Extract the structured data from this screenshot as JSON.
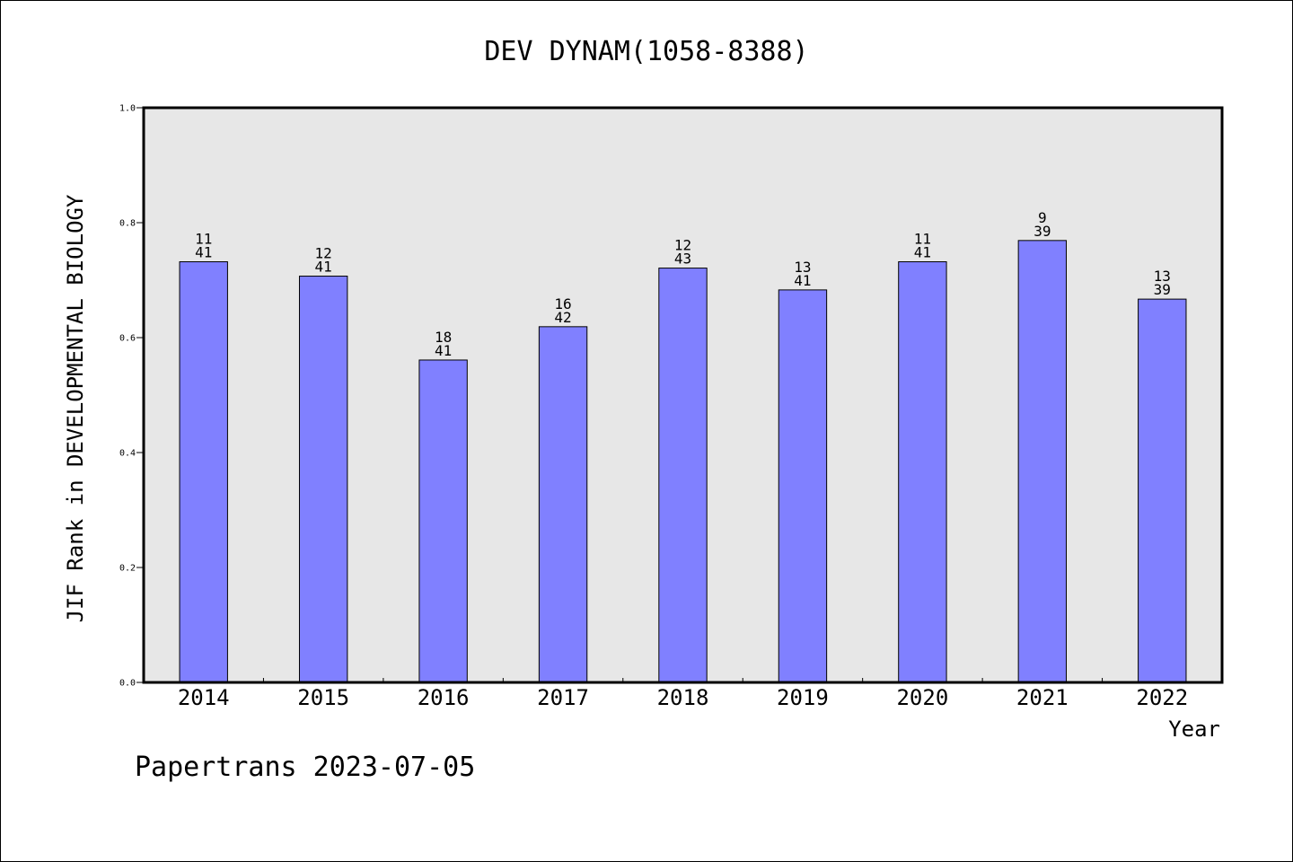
{
  "chart_data": {
    "type": "bar",
    "title": "DEV DYNAM(1058-8388)",
    "ylabel": "JIF Rank in DEVELOPMENTAL BIOLOGY",
    "xlabel": "Year",
    "categories": [
      "2014",
      "2015",
      "2016",
      "2017",
      "2018",
      "2019",
      "2020",
      "2021",
      "2022"
    ],
    "values": [
      0.732,
      0.707,
      0.561,
      0.619,
      0.721,
      0.683,
      0.732,
      0.769,
      0.667
    ],
    "rank": [
      "11",
      "12",
      "18",
      "16",
      "12",
      "13",
      "11",
      "9",
      "13"
    ],
    "total": [
      "41",
      "41",
      "41",
      "42",
      "43",
      "41",
      "41",
      "39",
      "39"
    ],
    "ylim": [
      0,
      1.0
    ],
    "yticks": [
      "0.0",
      "0.2",
      "0.4",
      "0.6",
      "0.8",
      "1.0"
    ],
    "grid": false,
    "bar_color": "#8080ff",
    "plot_background": "#e7e7e7"
  },
  "footer": "Papertrans 2023-07-05"
}
